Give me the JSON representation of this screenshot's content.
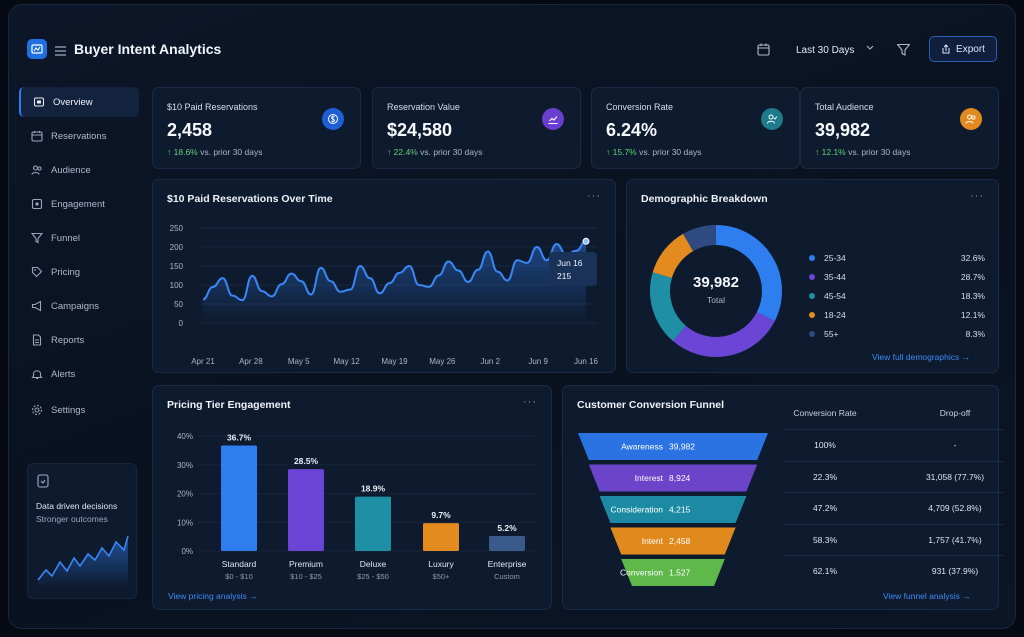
{
  "app": {
    "title": "Buyer Intent Analytics"
  },
  "header": {
    "date_range": "Last 30 Days",
    "export_label": "Export"
  },
  "sidebar": {
    "items": [
      {
        "label": "Overview",
        "icon": "home-icon",
        "active": true
      },
      {
        "label": "Reservations",
        "icon": "calendar-icon"
      },
      {
        "label": "Audience",
        "icon": "users-icon"
      },
      {
        "label": "Engagement",
        "icon": "engagement-icon"
      },
      {
        "label": "Funnel",
        "icon": "funnel-icon"
      },
      {
        "label": "Pricing",
        "icon": "tag-icon"
      },
      {
        "label": "Campaigns",
        "icon": "megaphone-icon"
      },
      {
        "label": "Reports",
        "icon": "document-icon"
      },
      {
        "label": "Alerts",
        "icon": "bell-icon"
      },
      {
        "label": "Settings",
        "icon": "gear-icon"
      }
    ],
    "promo": {
      "title": "Data driven decisions",
      "subtitle": "Stronger outcomes"
    }
  },
  "kpis": [
    {
      "label": "$10 Paid Reservations",
      "value": "2,458",
      "delta": "18.6%",
      "delta_suffix": "vs. prior 30 days",
      "icon": "dollar-icon",
      "color": "#1f5fd6"
    },
    {
      "label": "Reservation Value",
      "value": "$24,580",
      "delta": "22.4%",
      "delta_suffix": "vs. prior 30 days",
      "icon": "chart-up-icon",
      "color": "#6a3fcf"
    },
    {
      "label": "Conversion Rate",
      "value": "6.24%",
      "delta": "15.7%",
      "delta_suffix": "vs. prior 30 days",
      "icon": "user-check-icon",
      "color": "#1f7a8c"
    },
    {
      "label": "Total Audience",
      "value": "39,982",
      "delta": "12.1%",
      "delta_suffix": "vs. prior 30 days",
      "icon": "users-icon",
      "color": "#e28a1f"
    }
  ],
  "line_card": {
    "title": "$10 Paid Reservations Over Time",
    "tooltip_date": "Jun 16",
    "tooltip_value": "215"
  },
  "donut_card": {
    "title": "Demographic Breakdown",
    "center_value": "39,982",
    "center_label": "Total",
    "link": "View full demographics →"
  },
  "bar_card": {
    "title": "Pricing Tier Engagement",
    "link": "View pricing analysis →"
  },
  "funnel_card": {
    "title": "Customer Conversion Funnel",
    "col_rate": "Conversion Rate",
    "col_drop": "Drop-off",
    "link": "View funnel analysis →",
    "stages": [
      {
        "label": "Awareness",
        "value": "39,982",
        "rate": "100%",
        "drop": "-",
        "color": "#2b73e3"
      },
      {
        "label": "Interest",
        "value": "8,924",
        "rate": "22.3%",
        "drop": "31,058 (77.7%)",
        "color": "#6b44c9"
      },
      {
        "label": "Consideration",
        "value": "4,215",
        "rate": "47.2%",
        "drop": "4,709 (52.8%)",
        "color": "#1d8aa3"
      },
      {
        "label": "Intent",
        "value": "2,458",
        "rate": "58.3%",
        "drop": "1,757 (41.7%)",
        "color": "#e08a1e"
      },
      {
        "label": "Conversion",
        "value": "1,527",
        "rate": "62.1%",
        "drop": "931 (37.9%)",
        "color": "#5fb84a"
      }
    ]
  },
  "chart_data": [
    {
      "type": "line",
      "title": "$10 Paid Reservations Over Time",
      "x_ticks": [
        "Apr 21",
        "Apr 28",
        "May 5",
        "May 12",
        "May 19",
        "May 26",
        "Jun 2",
        "Jun 9",
        "Jun 16"
      ],
      "y_ticks": [
        0,
        50,
        100,
        150,
        200,
        250
      ],
      "ylim": [
        0,
        250
      ],
      "grid": true,
      "series": [
        {
          "values": [
            62,
            95,
            118,
            72,
            60,
            124,
            84,
            70,
            102,
            130,
            110,
            75,
            145,
            110,
            82,
            88,
            150,
            118,
            78,
            105,
            132,
            150,
            100,
            95,
            125,
            162,
            138,
            108,
            140,
            188,
            135,
            112,
            165,
            158,
            200,
            165,
            208,
            180,
            190,
            215
          ],
          "color": "#3a86f5"
        }
      ]
    },
    {
      "type": "pie",
      "title": "Demographic Breakdown",
      "categories": [
        "25-34",
        "35-44",
        "45-54",
        "18-24",
        "55+"
      ],
      "values": [
        32.6,
        28.7,
        18.3,
        12.1,
        8.3
      ],
      "labels": [
        "32.6%",
        "28.7%",
        "18.3%",
        "12.1%",
        "8.3%"
      ],
      "colors": [
        "#2f7ef0",
        "#6b46d6",
        "#1f8fa6",
        "#e38b1e",
        "#2e4a80"
      ],
      "legend": "right"
    },
    {
      "type": "bar",
      "title": "Pricing Tier Engagement",
      "categories": [
        "Standard",
        "Premium",
        "Deluxe",
        "Luxury",
        "Enterprise"
      ],
      "sub_labels": [
        "$0 - $10",
        "$10 - $25",
        "$25 - $50",
        "$50+",
        "Custom"
      ],
      "values": [
        36.7,
        28.5,
        18.9,
        9.7,
        5.2
      ],
      "value_labels": [
        "36.7%",
        "28.5%",
        "18.9%",
        "9.7%",
        "5.2%"
      ],
      "y_ticks": [
        "0%",
        "10%",
        "20%",
        "30%",
        "40%"
      ],
      "ylim": [
        0,
        40
      ],
      "colors": [
        "#2f7ef0",
        "#6b46d6",
        "#1f8fa6",
        "#e38b1e",
        "#3a5a8c"
      ]
    }
  ]
}
